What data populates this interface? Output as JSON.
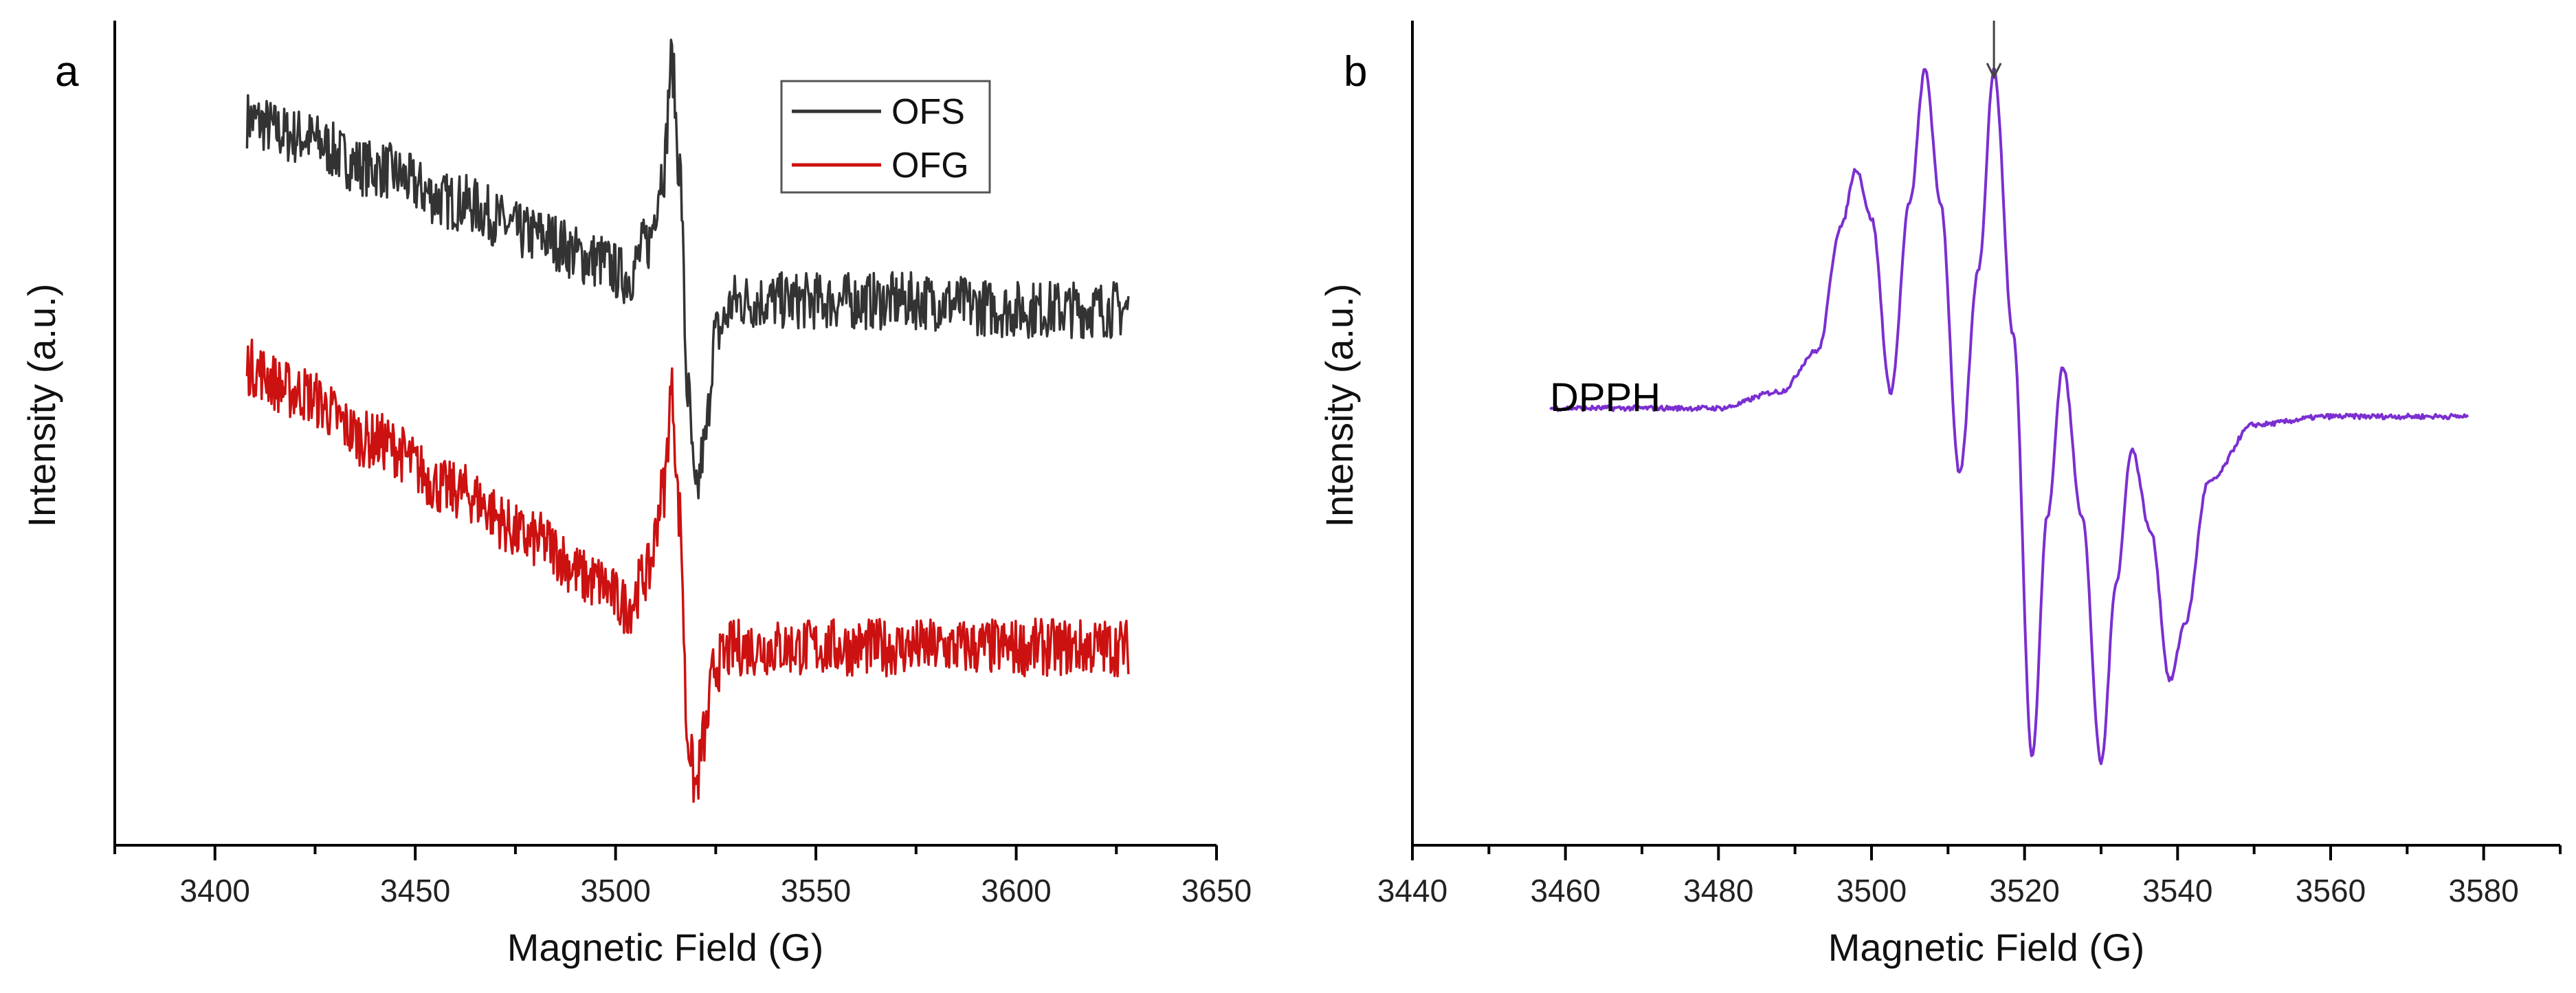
{
  "chart_data": [
    {
      "panel": "a",
      "type": "line",
      "title": "",
      "xlabel": "Magnetic Field (G)",
      "ylabel": "Intensity (a.u.)",
      "xlim": [
        3375,
        3650
      ],
      "ylim": [
        0,
        1.0
      ],
      "xticks": [
        3400,
        3450,
        3500,
        3550,
        3600,
        3650
      ],
      "grid": false,
      "legend": {
        "position": "top-right"
      },
      "series": [
        {
          "name": "OFS",
          "color": "#333333",
          "x": [
            3408,
            3420,
            3440,
            3460,
            3480,
            3495,
            3503,
            3508,
            3512,
            3514,
            3516,
            3518,
            3520,
            3522,
            3525,
            3530,
            3550,
            3575,
            3600,
            3628
          ],
          "y": [
            0.88,
            0.86,
            0.82,
            0.78,
            0.74,
            0.71,
            0.69,
            0.73,
            0.82,
            0.95,
            0.82,
            0.55,
            0.42,
            0.48,
            0.62,
            0.66,
            0.66,
            0.66,
            0.65,
            0.65
          ],
          "noise": 0.035
        },
        {
          "name": "OFG",
          "color": "#cc1111",
          "x": [
            3408,
            3420,
            3440,
            3460,
            3480,
            3495,
            3503,
            3508,
            3512,
            3514,
            3516,
            3518,
            3520,
            3522,
            3525,
            3530,
            3550,
            3575,
            3600,
            3628
          ],
          "y": [
            0.58,
            0.55,
            0.49,
            0.43,
            0.37,
            0.32,
            0.29,
            0.33,
            0.43,
            0.55,
            0.4,
            0.13,
            0.07,
            0.13,
            0.22,
            0.24,
            0.24,
            0.24,
            0.24,
            0.24
          ],
          "noise": 0.035
        }
      ]
    },
    {
      "panel": "b",
      "type": "line",
      "title": "",
      "xlabel": "Magnetic Field (G)",
      "ylabel": "Intensity (a.u.)",
      "xlim": [
        3440,
        3590
      ],
      "ylim": [
        0,
        1.0
      ],
      "xticks": [
        3440,
        3460,
        3480,
        3500,
        3520,
        3540,
        3560,
        3580
      ],
      "grid": false,
      "annotation": "DPPH",
      "arrow_at_x": 3516,
      "series": [
        {
          "name": "DPPH",
          "color": "#7b2fd0",
          "x": [
            3458,
            3470,
            3480,
            3488,
            3493,
            3496,
            3498,
            3500,
            3502.5,
            3505,
            3507,
            3509,
            3511.5,
            3514,
            3516,
            3518.5,
            3521,
            3523,
            3525,
            3527.5,
            3530,
            3532,
            3534,
            3536.5,
            3539,
            3541,
            3544,
            3550,
            3560,
            3578
          ],
          "y": [
            0.53,
            0.53,
            0.53,
            0.55,
            0.6,
            0.75,
            0.82,
            0.76,
            0.55,
            0.78,
            0.94,
            0.78,
            0.45,
            0.7,
            0.94,
            0.62,
            0.11,
            0.4,
            0.58,
            0.4,
            0.1,
            0.32,
            0.48,
            0.38,
            0.2,
            0.27,
            0.44,
            0.51,
            0.52,
            0.52
          ],
          "noise": 0.003
        }
      ]
    }
  ]
}
